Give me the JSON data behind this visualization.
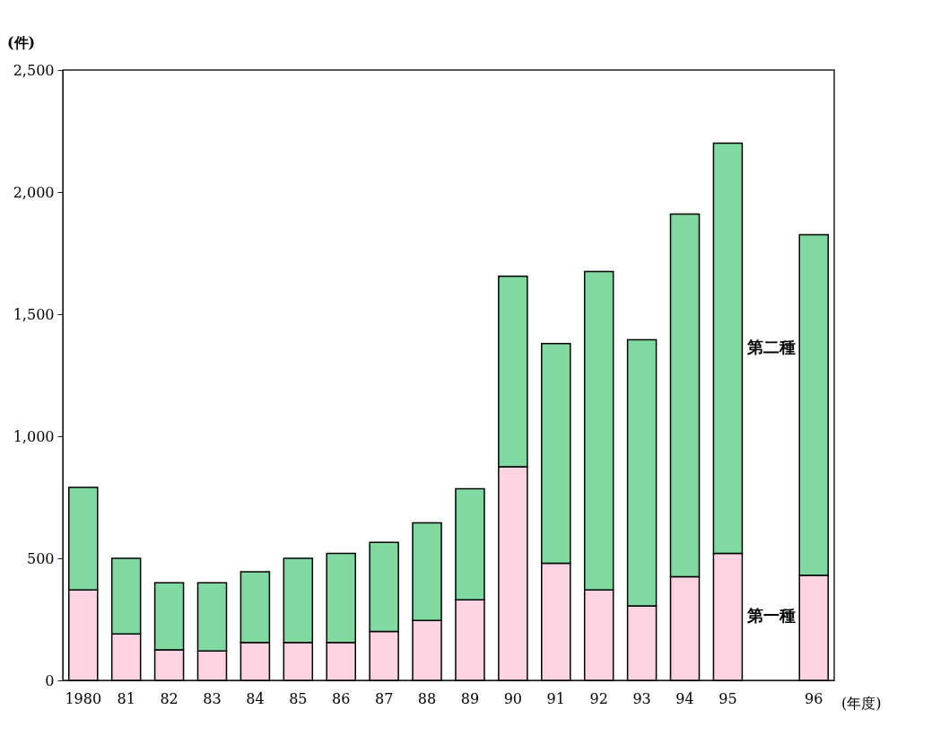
{
  "chart_data": {
    "type": "bar",
    "stacked": true,
    "xlabel": "(年度)",
    "ylabel": "(件)",
    "categories": [
      "1980",
      "81",
      "82",
      "83",
      "84",
      "85",
      "86",
      "87",
      "88",
      "89",
      "90",
      "91",
      "92",
      "93",
      "94",
      "95",
      null,
      "96"
    ],
    "series": [
      {
        "name": "第一種",
        "color": "#fcd3e0",
        "values": [
          370,
          190,
          125,
          120,
          155,
          155,
          155,
          200,
          245,
          330,
          875,
          480,
          370,
          305,
          425,
          520,
          null,
          430
        ]
      },
      {
        "name": "第二種",
        "color": "#7fd9a0",
        "values": [
          420,
          310,
          275,
          280,
          290,
          345,
          365,
          365,
          400,
          455,
          780,
          900,
          1305,
          1090,
          1485,
          1680,
          null,
          1395
        ]
      }
    ],
    "ylim": [
      0,
      2500
    ],
    "yticks": [
      0,
      {
        "value": 500,
        "label": "500"
      },
      {
        "value": 1000,
        "label": "1,000"
      },
      {
        "value": 1500,
        "label": "1,500"
      },
      {
        "value": 2000,
        "label": "2,000"
      },
      {
        "value": 2500,
        "label": "2,500"
      }
    ],
    "grid": false,
    "legend": false
  }
}
